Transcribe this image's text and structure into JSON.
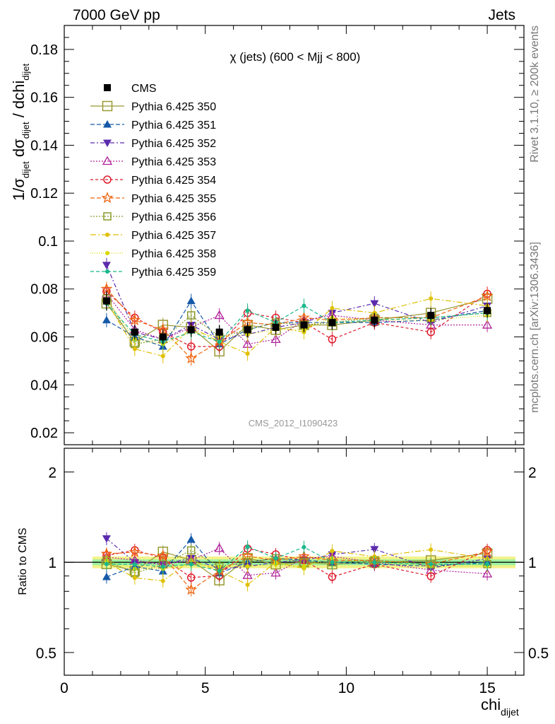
{
  "header": {
    "left": "7000 GeV pp",
    "right": "Jets",
    "side_top": "Rivet 3.1.10, ≥ 200k events",
    "side_bottom": "mcplots.cern.ch [arXiv:1306.3436]"
  },
  "chart_data": {
    "type": "scatter",
    "title": "χ (jets) (600 < Mjj <  800)",
    "watermark": "CMS_2012_I1090423",
    "xlabel": "chi_dijet",
    "ylabel": "1/σ_dijet dσ_dijet / dchi_dijet",
    "ratio_ylabel": "Ratio to CMS",
    "xlim": [
      0,
      16.3
    ],
    "ylim": [
      0.015,
      0.19
    ],
    "ratio_ylim": [
      0.42,
      2.4
    ],
    "x_ticks": [
      0,
      5,
      10,
      15
    ],
    "y_ticks": [
      "0.02",
      "0.04",
      "0.06",
      "0.08",
      "0.1",
      "0.12",
      "0.14",
      "0.16",
      "0.18"
    ],
    "ratio_ticks": [
      "0.5",
      "1",
      "2"
    ],
    "legend_position": "top-left",
    "x": [
      1.5,
      2.5,
      3.5,
      4.5,
      5.5,
      6.5,
      7.5,
      8.5,
      9.5,
      11,
      13,
      15
    ],
    "reference": {
      "name": "CMS",
      "values": [
        0.075,
        0.062,
        0.06,
        0.063,
        0.062,
        0.063,
        0.064,
        0.065,
        0.066,
        0.067,
        0.069,
        0.071
      ],
      "errors": [
        0.004,
        0.003,
        0.003,
        0.003,
        0.003,
        0.003,
        0.003,
        0.003,
        0.003,
        0.003,
        0.003,
        0.003
      ],
      "color": "#000000"
    },
    "series": [
      {
        "name": "Pythia 6.425 350",
        "color": "#999933",
        "marker": "square-open-large",
        "dash": "",
        "values": [
          0.074,
          0.058,
          0.065,
          0.064,
          0.054,
          0.065,
          0.063,
          0.065,
          0.065,
          0.067,
          0.07,
          0.076
        ]
      },
      {
        "name": "Pythia 6.425 351",
        "color": "#1559a8",
        "marker": "triangle-up",
        "dash": "6,3",
        "values": [
          0.067,
          0.06,
          0.056,
          0.075,
          0.057,
          0.063,
          0.066,
          0.066,
          0.066,
          0.066,
          0.067,
          0.071
        ]
      },
      {
        "name": "Pythia 6.425 352",
        "color": "#5b2aad",
        "marker": "triangle-down",
        "dash": "6,3,2,3",
        "values": [
          0.09,
          0.062,
          0.059,
          0.065,
          0.059,
          0.061,
          0.064,
          0.066,
          0.07,
          0.074,
          0.066,
          0.073
        ]
      },
      {
        "name": "Pythia 6.425 353",
        "color": "#b0209a",
        "marker": "triangle-up-open",
        "dash": "2,2",
        "values": [
          0.078,
          0.063,
          0.059,
          0.064,
          0.069,
          0.057,
          0.059,
          0.067,
          0.069,
          0.067,
          0.065,
          0.065
        ]
      },
      {
        "name": "Pythia 6.425 354",
        "color": "#dd1a2b",
        "marker": "circle-open",
        "dash": "4,3",
        "values": [
          0.079,
          0.068,
          0.062,
          0.056,
          0.056,
          0.07,
          0.068,
          0.066,
          0.059,
          0.066,
          0.062,
          0.078
        ]
      },
      {
        "name": "Pythia 6.425 355",
        "color": "#ee6611",
        "marker": "star-open",
        "dash": "6,3",
        "values": [
          0.08,
          0.067,
          0.063,
          0.051,
          0.058,
          0.066,
          0.065,
          0.068,
          0.067,
          0.068,
          0.068,
          0.077
        ]
      },
      {
        "name": "Pythia 6.425 356",
        "color": "#8a9a2a",
        "marker": "square-open",
        "dash": "2,2",
        "values": [
          0.076,
          0.057,
          0.059,
          0.069,
          0.06,
          0.063,
          0.066,
          0.065,
          0.066,
          0.068,
          0.068,
          0.07
        ]
      },
      {
        "name": "Pythia 6.425 357",
        "color": "#e0c000",
        "marker": "dot",
        "dash": "8,3,2,3",
        "values": [
          0.075,
          0.055,
          0.052,
          0.064,
          0.058,
          0.053,
          0.064,
          0.062,
          0.072,
          0.07,
          0.076,
          0.073
        ]
      },
      {
        "name": "Pythia 6.425 358",
        "color": "#d8d800",
        "marker": "dot",
        "dash": "1,2",
        "values": [
          0.076,
          0.059,
          0.057,
          0.062,
          0.06,
          0.061,
          0.063,
          0.063,
          0.068,
          0.067,
          0.067,
          0.069
        ]
      },
      {
        "name": "Pythia 6.425 359",
        "color": "#19b88a",
        "marker": "dot",
        "dash": "5,3",
        "values": [
          0.074,
          0.061,
          0.058,
          0.062,
          0.058,
          0.071,
          0.066,
          0.073,
          0.066,
          0.067,
          0.068,
          0.07
        ]
      }
    ]
  }
}
